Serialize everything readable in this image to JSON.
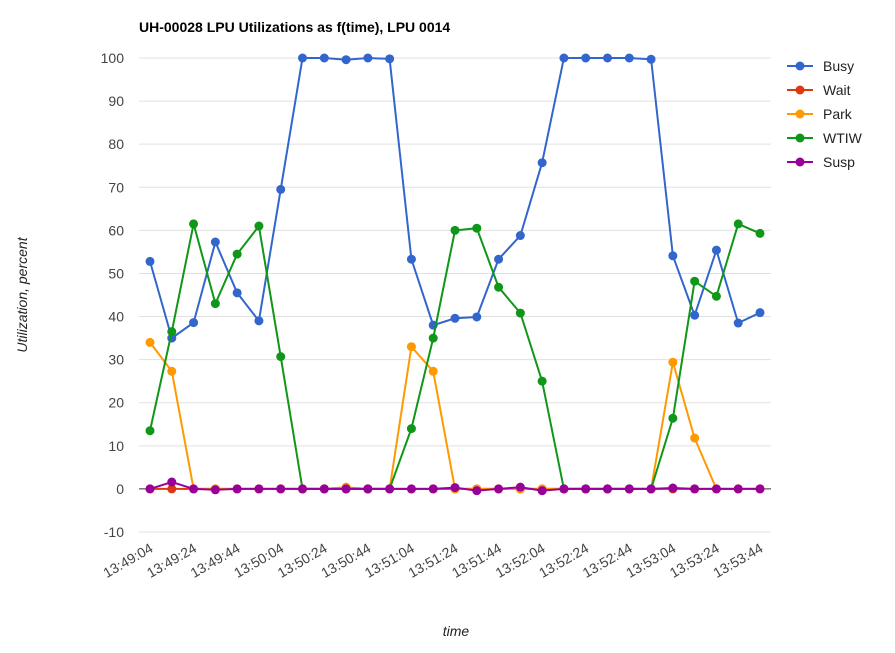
{
  "chart_data": {
    "type": "line",
    "title": "UH-00028 LPU Utilizations as f(time), LPU 0014",
    "xlabel": "time",
    "ylabel": "Utilization, percent",
    "ylim": [
      -10,
      100
    ],
    "yticks": [
      -10,
      0,
      10,
      20,
      30,
      40,
      50,
      60,
      70,
      80,
      90,
      100
    ],
    "xtick_labels": [
      "13:49:04",
      "13:49:24",
      "13:49:44",
      "13:50:04",
      "13:50:24",
      "13:50:44",
      "13:51:04",
      "13:51:24",
      "13:51:44",
      "13:52:04",
      "13:52:24",
      "13:52:44",
      "13:53:04",
      "13:53:24",
      "13:53:44"
    ],
    "x": [
      "13:49:04",
      "13:49:14",
      "13:49:24",
      "13:49:34",
      "13:49:44",
      "13:49:54",
      "13:50:04",
      "13:50:14",
      "13:50:24",
      "13:50:34",
      "13:50:44",
      "13:50:54",
      "13:51:04",
      "13:51:14",
      "13:51:24",
      "13:51:34",
      "13:51:44",
      "13:51:54",
      "13:52:04",
      "13:52:14",
      "13:52:24",
      "13:52:34",
      "13:52:44",
      "13:52:54",
      "13:53:04",
      "13:53:14",
      "13:53:24",
      "13:53:34",
      "13:53:44"
    ],
    "grid": true,
    "legend": "right",
    "series": [
      {
        "name": "Busy",
        "color": "#3366cc",
        "values": [
          52.8,
          35,
          38.6,
          57.3,
          45.5,
          39,
          69.5,
          100,
          100,
          99.6,
          100,
          99.8,
          53.3,
          38,
          39.6,
          39.9,
          53.3,
          58.8,
          75.7,
          100,
          100,
          100,
          100,
          99.7,
          54.1,
          40.3,
          55.4,
          38.5,
          40.9
        ]
      },
      {
        "name": "Wait",
        "color": "#dc3912",
        "values": [
          0,
          0,
          0,
          0,
          0,
          0,
          0,
          0,
          0,
          0,
          0,
          0,
          0,
          0,
          0,
          0,
          0,
          0,
          0,
          0,
          0,
          0,
          0,
          0,
          0,
          0,
          0,
          0,
          0
        ]
      },
      {
        "name": "Park",
        "color": "#ff9900",
        "values": [
          34,
          27.3,
          0,
          0,
          0,
          0,
          0,
          0,
          0,
          0.4,
          0,
          0,
          33,
          27.3,
          0,
          0,
          0,
          0,
          0,
          0,
          0,
          0,
          0,
          0,
          29.4,
          11.8,
          0,
          0,
          0
        ]
      },
      {
        "name": "WTIW",
        "color": "#109618",
        "values": [
          13.5,
          36.5,
          61.5,
          43,
          54.5,
          61,
          30.7,
          0,
          0,
          0,
          0,
          0,
          14,
          35,
          60,
          60.5,
          46.8,
          40.8,
          25,
          0,
          0,
          0,
          0,
          0,
          16.4,
          48.2,
          44.7,
          61.5,
          59.3
        ]
      },
      {
        "name": "Susp",
        "color": "#990099",
        "values": [
          0,
          1.6,
          0,
          -0.2,
          0,
          0,
          0,
          0,
          0,
          0,
          0,
          0,
          0,
          0,
          0.3,
          -0.4,
          0,
          0.4,
          -0.4,
          0,
          0,
          0,
          0,
          0,
          0.2,
          0,
          0,
          0,
          0
        ]
      }
    ]
  }
}
